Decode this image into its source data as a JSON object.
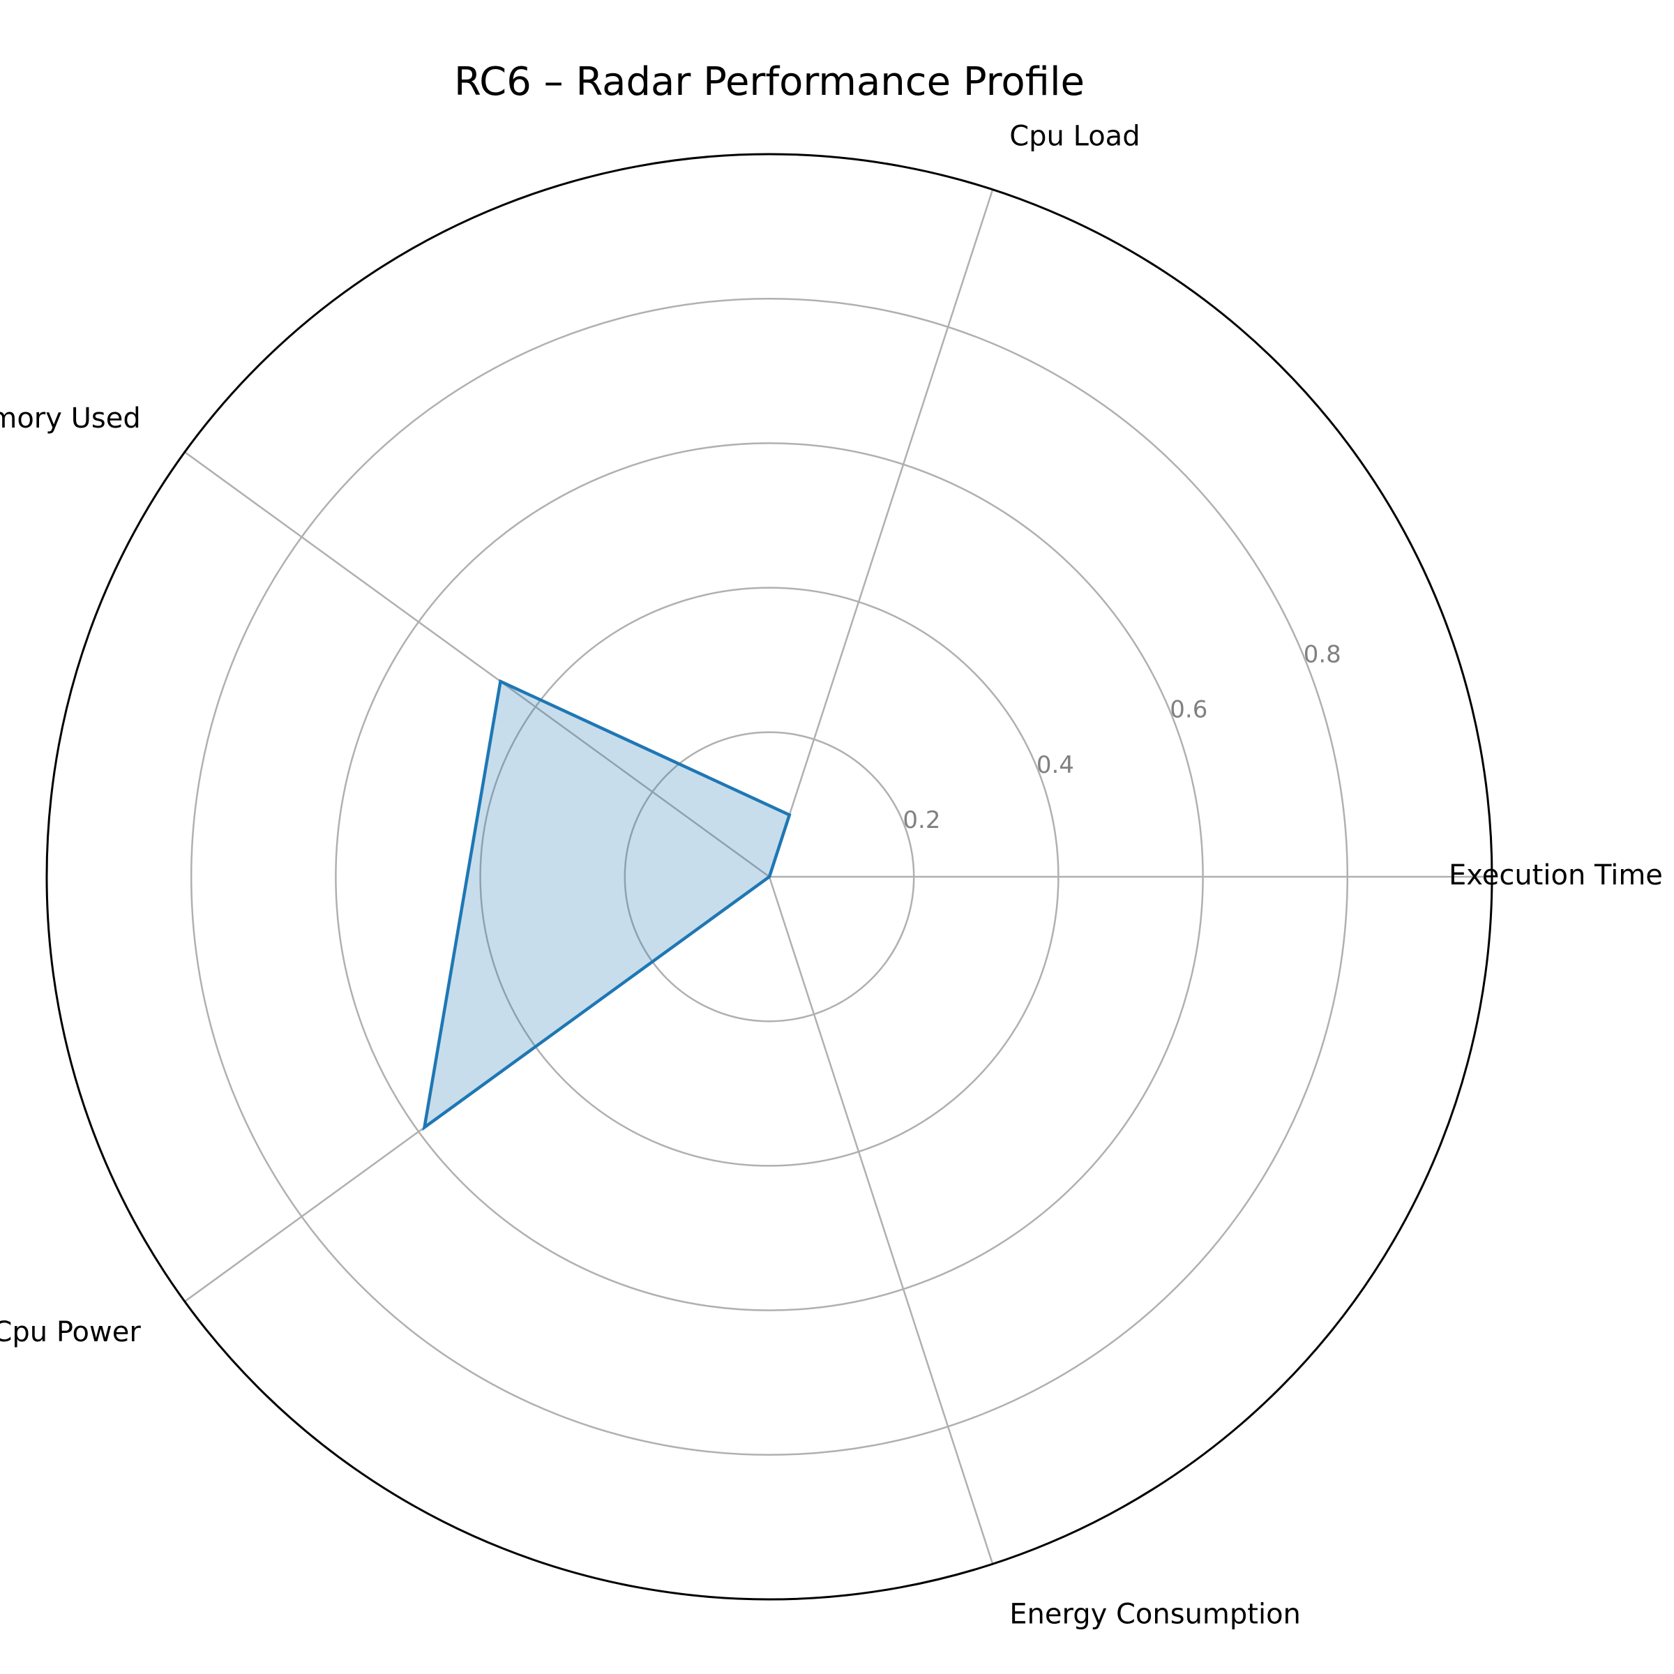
{
  "chart_data": {
    "type": "radar",
    "title": "RC6 – Radar Performance Profile",
    "axes": [
      "Execution Time",
      "Cpu Load",
      "Memory Used",
      "Cpu Power",
      "Energy Consumption"
    ],
    "series": [
      {
        "values": [
          0.0,
          0.09,
          0.46,
          0.59,
          0.0
        ]
      }
    ],
    "rlim": [
      0,
      1.0
    ],
    "rticks": [
      0.2,
      0.4,
      0.6,
      0.8
    ],
    "rtick_labels": [
      "0.2",
      "0.4",
      "0.6",
      "0.8"
    ],
    "grid": true,
    "colors": {
      "line": "#1f77b4",
      "fill": "#1f77b4",
      "grid": "#b0b0b0",
      "outer_ring": "#000000",
      "tick_label": "#808080"
    }
  }
}
